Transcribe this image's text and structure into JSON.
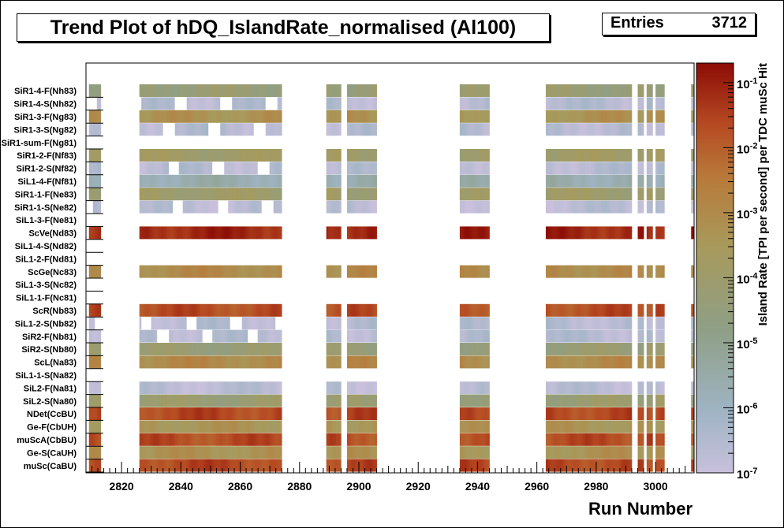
{
  "chart_data": {
    "type": "heatmap",
    "title": "Trend Plot of hDQ_IslandRate_normalised (Al100)",
    "stats": {
      "label": "Entries",
      "value": "3712"
    },
    "xlabel": "Run Number",
    "zlabel": "Island Rate [TPI per second] per TDC muSc Hit",
    "xlim": [
      2808,
      3013
    ],
    "x_ticks": [
      2820,
      2840,
      2860,
      2880,
      2900,
      2920,
      2940,
      2960,
      2980,
      3000
    ],
    "z_scale": "log",
    "zlim": [
      1e-07,
      0.2
    ],
    "z_ticks": [
      {
        "exp": -7,
        "label": "10",
        "sup": "-7"
      },
      {
        "exp": -6,
        "label": "10",
        "sup": "-6"
      },
      {
        "exp": -5,
        "label": "10",
        "sup": "-5"
      },
      {
        "exp": -4,
        "label": "10",
        "sup": "-4"
      },
      {
        "exp": -3,
        "label": "10",
        "sup": "-3"
      },
      {
        "exp": -2,
        "label": "10",
        "sup": "-2"
      },
      {
        "exp": -1,
        "label": "10",
        "sup": "-1"
      }
    ],
    "run_segments": [
      [
        2809,
        2813
      ],
      [
        2826,
        2874
      ],
      [
        2889,
        2894
      ],
      [
        2896,
        2906
      ],
      [
        2934,
        2944
      ],
      [
        2963,
        2992
      ],
      [
        2994,
        2996
      ],
      [
        2997,
        2999
      ],
      [
        3000,
        3003
      ],
      [
        3012,
        3013
      ]
    ],
    "rows": [
      {
        "label": "muSc(CaBU)",
        "log_rate": -1.6,
        "partial": false
      },
      {
        "label": "Ge-S(CaUH)",
        "log_rate": -3.3,
        "partial": false
      },
      {
        "label": "muScA(CbBU)",
        "log_rate": -1.7,
        "partial": false
      },
      {
        "label": "Ge-F(CbUH)",
        "log_rate": -3.4,
        "partial": false
      },
      {
        "label": "NDet(CcBU)",
        "log_rate": -1.6,
        "partial": false
      },
      {
        "label": "SiL2-S(Na80)",
        "log_rate": -4.2,
        "partial": false
      },
      {
        "label": "SiL2-F(Na81)",
        "log_rate": -6.7,
        "partial": false
      },
      {
        "label": "SiL1-1-S(Na82)",
        "log_rate": null,
        "partial": false
      },
      {
        "label": "ScL(Na83)",
        "log_rate": -3.0,
        "partial": false
      },
      {
        "label": "SiR2-S(Nb80)",
        "log_rate": -4.3,
        "partial": false
      },
      {
        "label": "SiR2-F(Nb81)",
        "log_rate": -6.6,
        "partial": true
      },
      {
        "label": "SiL1-2-S(Nb82)",
        "log_rate": -6.6,
        "partial": true
      },
      {
        "label": "ScR(Nb83)",
        "log_rate": -1.7,
        "partial": false
      },
      {
        "label": "SiL1-1-F(Nc81)",
        "log_rate": null,
        "partial": false
      },
      {
        "label": "SiL1-3-S(Nc82)",
        "log_rate": null,
        "partial": false
      },
      {
        "label": "ScGe(Nc83)",
        "log_rate": -3.0,
        "partial": false
      },
      {
        "label": "SiL1-2-F(Nd81)",
        "log_rate": null,
        "partial": false
      },
      {
        "label": "SiL1-4-S(Nd82)",
        "log_rate": null,
        "partial": false
      },
      {
        "label": "ScVe(Nd83)",
        "log_rate": -1.1,
        "partial": false
      },
      {
        "label": "SiL1-3-F(Ne81)",
        "log_rate": null,
        "partial": false
      },
      {
        "label": "SiR1-1-S(Ne82)",
        "log_rate": -6.7,
        "partial": true
      },
      {
        "label": "SiR1-1-F(Ne83)",
        "log_rate": -4.0,
        "partial": false
      },
      {
        "label": "SiL1-4-F(Nf81)",
        "log_rate": -5.6,
        "partial": false
      },
      {
        "label": "SiR1-2-S(Nf82)",
        "log_rate": -6.6,
        "partial": true
      },
      {
        "label": "SiR1-2-F(Nf83)",
        "log_rate": -3.9,
        "partial": false
      },
      {
        "label": "SiR1-sum-F(Ng81)",
        "log_rate": null,
        "partial": false
      },
      {
        "label": "SiR1-3-S(Ng82)",
        "log_rate": -6.6,
        "partial": true
      },
      {
        "label": "SiR1-3-F(Ng83)",
        "log_rate": -3.3,
        "partial": false
      },
      {
        "label": "SiR1-4-S(Nh82)",
        "log_rate": -6.6,
        "partial": true
      },
      {
        "label": "SiR1-4-F(Nh83)",
        "log_rate": -4.3,
        "partial": false
      }
    ],
    "grid": false,
    "legend": "right colour bar"
  }
}
